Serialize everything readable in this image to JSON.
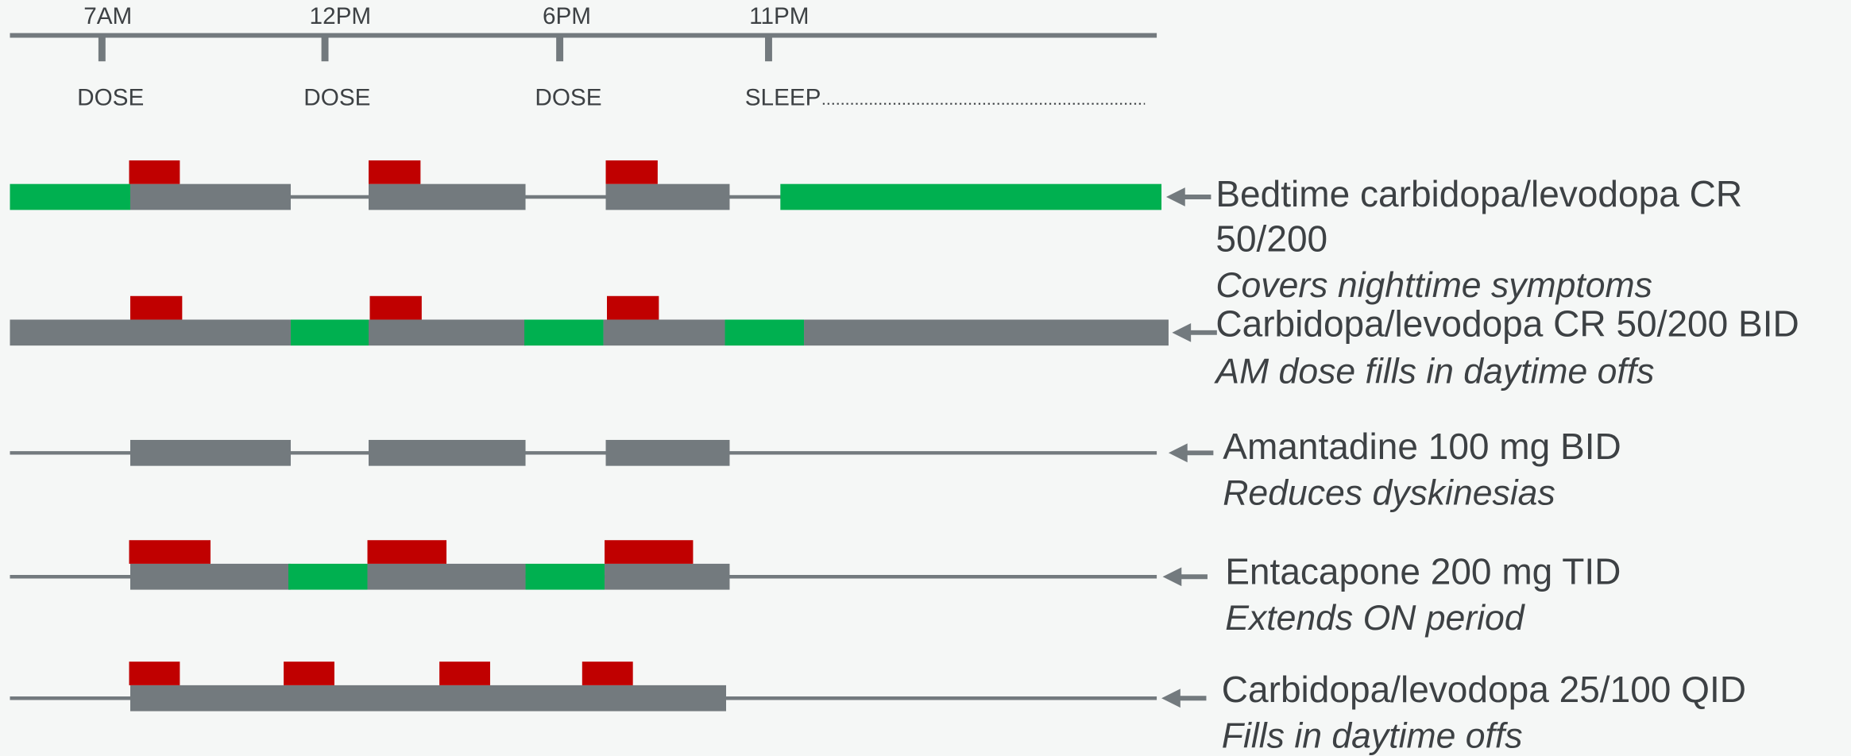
{
  "timeline": {
    "times": [
      "7AM",
      "12PM",
      "6PM",
      "11PM"
    ],
    "events": [
      "DOSE",
      "DOSE",
      "DOSE",
      "SLEEP"
    ]
  },
  "rows": [
    {
      "name": [
        "Bedtime carbidopa/levodopa CR",
        "50/200"
      ],
      "note": "Covers nighttime symptoms"
    },
    {
      "name": [
        "Carbidopa/levodopa CR 50/200 BID"
      ],
      "note": "AM dose fills in daytime offs"
    },
    {
      "name": [
        "Amantadine 100 mg BID"
      ],
      "note": "Reduces dyskinesias"
    },
    {
      "name": [
        "Entacapone 200 mg TID"
      ],
      "note": "Extends ON period"
    },
    {
      "name": [
        "Carbidopa/levodopa 25/100 QID"
      ],
      "note": "Fills in daytime offs"
    }
  ]
}
